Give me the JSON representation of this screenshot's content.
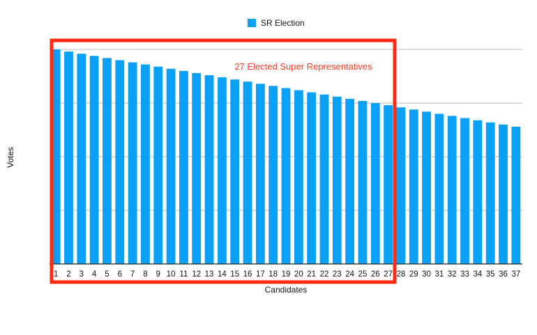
{
  "chart_data": {
    "type": "bar",
    "title": "",
    "xlabel": "Candidates",
    "ylabel": "Votes",
    "categories": [
      "1",
      "2",
      "3",
      "4",
      "5",
      "6",
      "7",
      "8",
      "9",
      "10",
      "11",
      "12",
      "13",
      "14",
      "15",
      "16",
      "17",
      "18",
      "19",
      "20",
      "21",
      "22",
      "23",
      "24",
      "25",
      "26",
      "27",
      "28",
      "29",
      "30",
      "31",
      "32",
      "33",
      "34",
      "35",
      "36",
      "37"
    ],
    "series": [
      {
        "name": "SR Election",
        "values": [
          100,
          99,
          98,
          97,
          96,
          95,
          94,
          93,
          92,
          91,
          90,
          89,
          88,
          87,
          86,
          85,
          84,
          83,
          82,
          81,
          80,
          79,
          78,
          77,
          76,
          75,
          74,
          73,
          72,
          71,
          70,
          69,
          68,
          67,
          66,
          65,
          64
        ]
      }
    ],
    "ylim": [
      0,
      100
    ],
    "grid": true,
    "legend_position": "top-center",
    "annotation": {
      "text": "27 Elected Super Representatives",
      "covers_categories": [
        "1",
        "27"
      ]
    },
    "colors": {
      "bar": "#0aa0f5",
      "annotation": "#ff2a12"
    }
  }
}
